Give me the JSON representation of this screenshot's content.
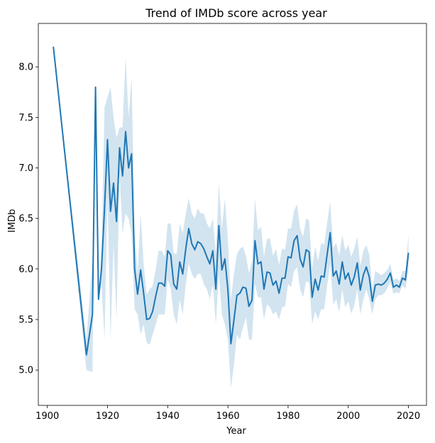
{
  "chart_data": {
    "type": "line",
    "title": "Trend of IMDb score across year",
    "xlabel": "Year",
    "ylabel": "IMDb",
    "xlim": [
      1897,
      2026
    ],
    "ylim": [
      4.65,
      8.43
    ],
    "xticks": [
      1900,
      1920,
      1940,
      1960,
      1980,
      2000,
      2020
    ],
    "yticks": [
      5.0,
      5.5,
      6.0,
      6.5,
      7.0,
      7.5,
      8.0
    ],
    "grid": false,
    "colors": {
      "line": "#1f77b4",
      "band": "#1f77b4"
    },
    "series": [
      {
        "x": [
          1902,
          1913,
          1914,
          1915,
          1916,
          1917,
          1918,
          1919,
          1920,
          1921,
          1922,
          1923,
          1924,
          1925,
          1926,
          1927,
          1928,
          1929,
          1930,
          1931,
          1932,
          1933,
          1934,
          1935,
          1936,
          1937,
          1938,
          1939,
          1940,
          1941,
          1942,
          1943,
          1944,
          1945,
          1946,
          1947,
          1948,
          1949,
          1950,
          1951,
          1952,
          1953,
          1954,
          1955,
          1956,
          1957,
          1958,
          1959,
          1960,
          1961,
          1962,
          1963,
          1964,
          1965,
          1966,
          1967,
          1968,
          1969,
          1970,
          1971,
          1972,
          1973,
          1974,
          1975,
          1976,
          1977,
          1978,
          1979,
          1980,
          1981,
          1982,
          1983,
          1984,
          1985,
          1986,
          1987,
          1988,
          1989,
          1990,
          1991,
          1992,
          1993,
          1994,
          1995,
          1996,
          1997,
          1998,
          1999,
          2000,
          2001,
          2002,
          2003,
          2004,
          2005,
          2006,
          2007,
          2008,
          2009,
          2010,
          2011,
          2012,
          2013,
          2014,
          2015,
          2016,
          2017,
          2018,
          2019,
          2020
        ],
        "y": [
          8.2,
          5.15,
          5.35,
          5.55,
          7.8,
          5.7,
          6.0,
          6.6,
          7.28,
          6.57,
          6.85,
          6.47,
          7.2,
          6.92,
          7.36,
          7.0,
          7.14,
          6.0,
          5.75,
          5.99,
          5.76,
          5.5,
          5.51,
          5.58,
          5.73,
          5.86,
          5.86,
          5.83,
          6.18,
          6.14,
          5.85,
          5.8,
          6.07,
          5.95,
          6.2,
          6.4,
          6.25,
          6.19,
          6.27,
          6.25,
          6.2,
          6.12,
          6.05,
          6.18,
          5.8,
          6.43,
          5.99,
          6.1,
          5.8,
          5.26,
          5.49,
          5.74,
          5.76,
          5.82,
          5.81,
          5.63,
          5.69,
          6.28,
          6.05,
          6.07,
          5.8,
          5.97,
          5.96,
          5.84,
          5.88,
          5.76,
          5.91,
          5.91,
          6.12,
          6.11,
          6.28,
          6.33,
          6.1,
          6.02,
          6.19,
          6.17,
          5.72,
          5.9,
          5.79,
          5.93,
          5.92,
          6.15,
          6.36,
          5.93,
          5.98,
          5.85,
          6.07,
          5.9,
          5.96,
          5.84,
          5.92,
          6.06,
          5.79,
          5.94,
          6.02,
          5.92,
          5.68,
          5.84,
          5.85,
          5.84,
          5.86,
          5.9,
          5.96,
          5.82,
          5.84,
          5.82,
          5.91,
          5.89,
          6.16
        ],
        "lower": [
          8.2,
          5.0,
          4.99,
          4.98,
          7.8,
          5.7,
          5.85,
          5.3,
          6.75,
          5.3,
          6.25,
          5.5,
          6.95,
          6.35,
          6.55,
          6.5,
          6.35,
          5.6,
          5.55,
          5.35,
          5.45,
          5.27,
          5.25,
          5.35,
          5.45,
          5.55,
          5.55,
          5.55,
          5.9,
          5.8,
          5.55,
          5.45,
          5.7,
          5.55,
          5.85,
          6.05,
          5.95,
          5.9,
          5.95,
          5.95,
          5.85,
          5.8,
          5.7,
          5.85,
          5.45,
          5.95,
          5.55,
          5.45,
          5.3,
          4.82,
          5.05,
          5.35,
          5.3,
          5.42,
          5.52,
          5.3,
          5.3,
          5.85,
          5.72,
          5.72,
          5.5,
          5.65,
          5.62,
          5.55,
          5.58,
          5.5,
          5.62,
          5.63,
          5.85,
          5.82,
          5.98,
          6.02,
          5.8,
          5.72,
          5.88,
          5.86,
          5.45,
          5.58,
          5.5,
          5.6,
          5.6,
          5.84,
          6.05,
          5.65,
          5.7,
          5.57,
          5.8,
          5.62,
          5.68,
          5.56,
          5.64,
          5.8,
          5.55,
          5.7,
          5.8,
          5.7,
          5.55,
          5.7,
          5.74,
          5.74,
          5.76,
          5.81,
          5.87,
          5.75,
          5.77,
          5.76,
          5.84,
          5.8,
          6.0
        ],
        "upper": [
          8.2,
          5.3,
          5.7,
          6.1,
          7.8,
          5.7,
          6.15,
          7.6,
          7.7,
          7.8,
          7.5,
          7.3,
          7.4,
          7.4,
          8.1,
          7.5,
          7.9,
          6.4,
          5.95,
          6.55,
          6.05,
          5.75,
          5.8,
          5.83,
          6.0,
          6.18,
          6.18,
          6.12,
          6.45,
          6.45,
          6.15,
          6.15,
          6.45,
          6.35,
          6.55,
          6.7,
          6.55,
          6.5,
          6.6,
          6.55,
          6.55,
          6.45,
          6.4,
          6.5,
          6.15,
          6.85,
          6.4,
          6.7,
          6.3,
          5.7,
          5.95,
          6.15,
          6.2,
          6.22,
          6.13,
          5.96,
          6.08,
          6.7,
          6.38,
          6.42,
          6.12,
          6.3,
          6.3,
          6.13,
          6.2,
          6.04,
          6.2,
          6.19,
          6.4,
          6.4,
          6.58,
          6.64,
          6.4,
          6.32,
          6.5,
          6.48,
          6.0,
          6.22,
          6.08,
          6.26,
          6.24,
          6.46,
          6.67,
          6.21,
          6.26,
          6.13,
          6.34,
          6.18,
          6.24,
          6.12,
          6.2,
          6.32,
          6.03,
          6.18,
          6.24,
          6.14,
          5.81,
          5.98,
          5.96,
          5.94,
          5.96,
          5.99,
          6.05,
          5.89,
          5.91,
          5.88,
          5.98,
          5.98,
          6.34
        ]
      }
    ]
  }
}
